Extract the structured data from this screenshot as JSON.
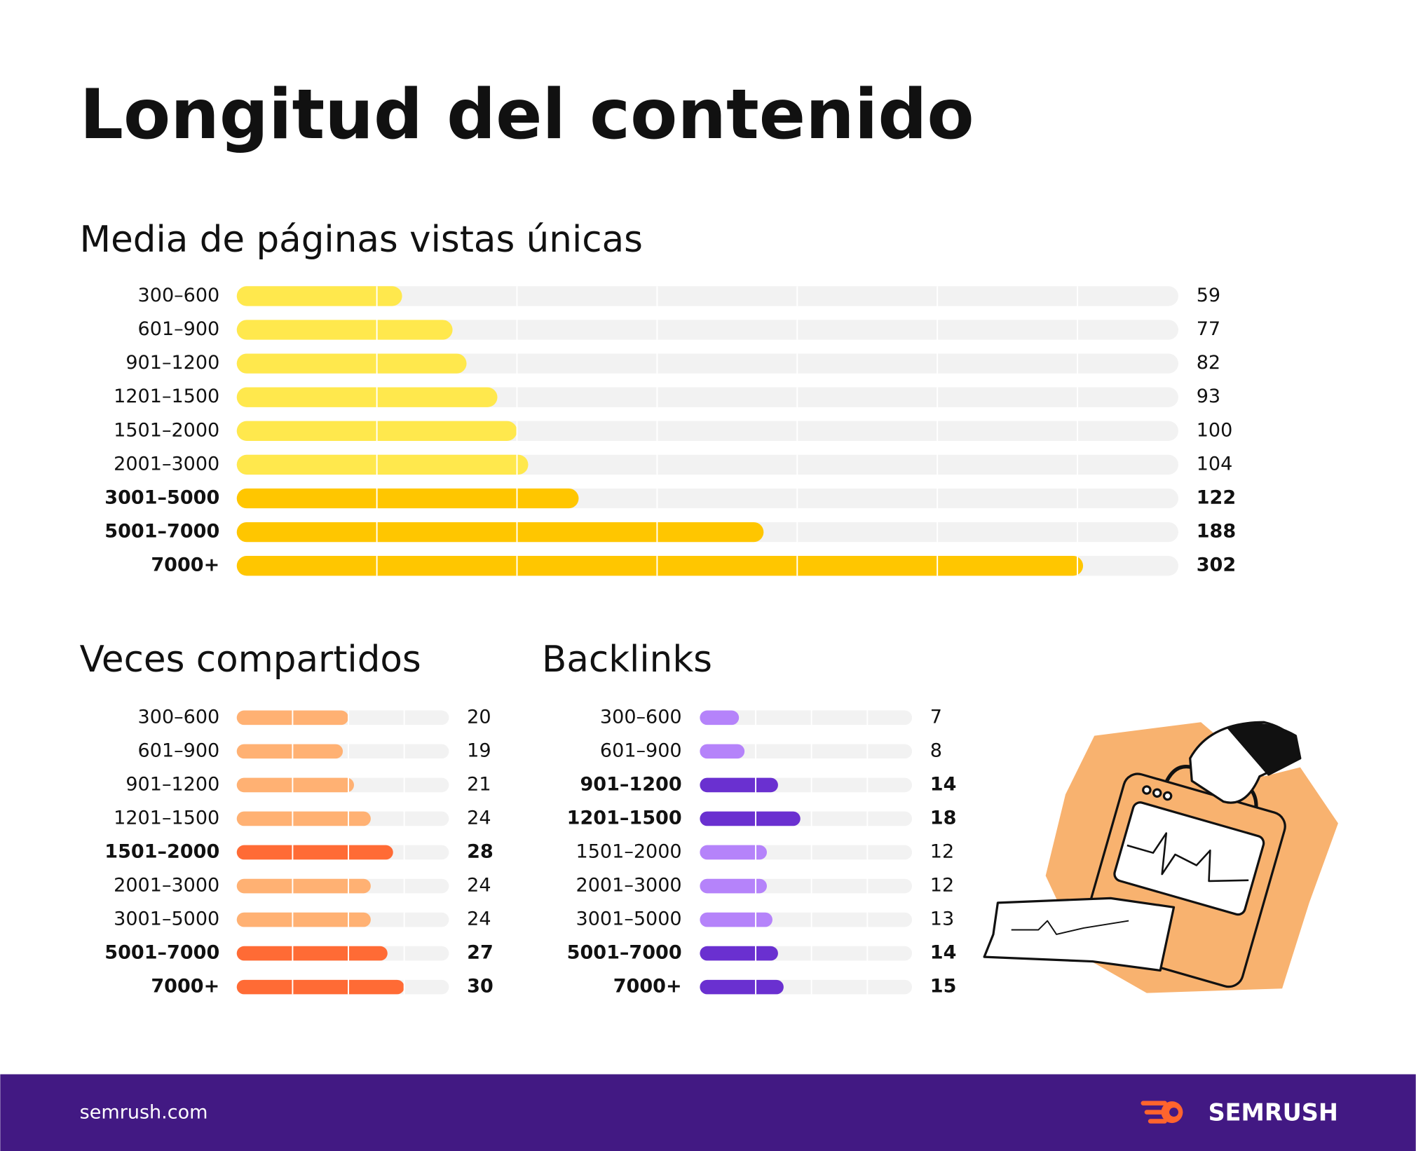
{
  "title": "Longitud del contenido",
  "footer": {
    "site": "semrush.com",
    "brand": "SEMRUSH"
  },
  "chart_data": [
    {
      "type": "bar",
      "title": "Media de páginas vistas únicas",
      "categories": [
        "300–600",
        "601–900",
        "901–1200",
        "1201–1500",
        "1501–2000",
        "2001–3000",
        "3001–5000",
        "5001–7000",
        "7000+"
      ],
      "values": [
        59,
        77,
        82,
        93,
        100,
        104,
        122,
        188,
        302
      ],
      "highlighted": [
        false,
        false,
        false,
        false,
        false,
        false,
        true,
        true,
        true
      ],
      "color": "#ffe84d",
      "highlight_color": "#ffc600",
      "xlim": [
        0,
        336
      ],
      "xticks": [
        50,
        100,
        150,
        200,
        250,
        300
      ]
    },
    {
      "type": "bar",
      "title": "Veces compartidos",
      "categories": [
        "300–600",
        "601–900",
        "901–1200",
        "1201–1500",
        "1501–2000",
        "2001–3000",
        "3001–5000",
        "5001–7000",
        "7000+"
      ],
      "values": [
        20,
        19,
        21,
        24,
        28,
        24,
        24,
        27,
        30
      ],
      "highlighted": [
        false,
        false,
        false,
        false,
        true,
        false,
        false,
        true,
        true
      ],
      "color": "#ffb173",
      "highlight_color": "#ff6b35",
      "xlim": [
        0,
        38
      ],
      "xticks": [
        10,
        20,
        30
      ]
    },
    {
      "type": "bar",
      "title": "Backlinks",
      "categories": [
        "300–600",
        "601–900",
        "901–1200",
        "1201–1500",
        "1501–2000",
        "2001–3000",
        "3001–5000",
        "5001–7000",
        "7000+"
      ],
      "values": [
        7,
        8,
        14,
        18,
        12,
        12,
        13,
        14,
        15
      ],
      "highlighted": [
        false,
        false,
        true,
        true,
        false,
        false,
        false,
        true,
        true
      ],
      "color": "#b583fa",
      "highlight_color": "#6a30d0",
      "xlim": [
        0,
        38
      ],
      "xticks": [
        10,
        20,
        30
      ]
    }
  ]
}
